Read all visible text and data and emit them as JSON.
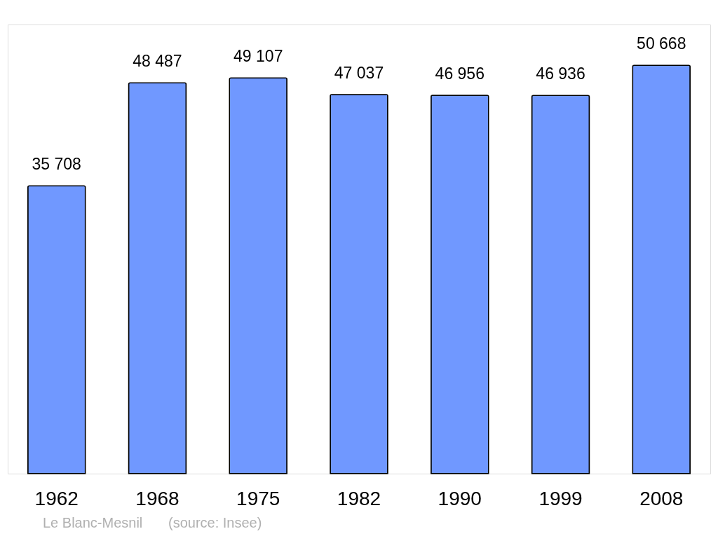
{
  "chart_data": {
    "type": "bar",
    "categories": [
      "1962",
      "1968",
      "1975",
      "1982",
      "1990",
      "1999",
      "2008"
    ],
    "values": [
      35708,
      48487,
      49107,
      47037,
      46956,
      46936,
      50668
    ],
    "value_labels": [
      "35 708",
      "48 487",
      "49 107",
      "47 037",
      "46 956",
      "46 936",
      "50 668"
    ],
    "color": "#7098ff",
    "annotations": [
      "Le Blanc-Mesnil",
      "(source: Insee)"
    ]
  }
}
